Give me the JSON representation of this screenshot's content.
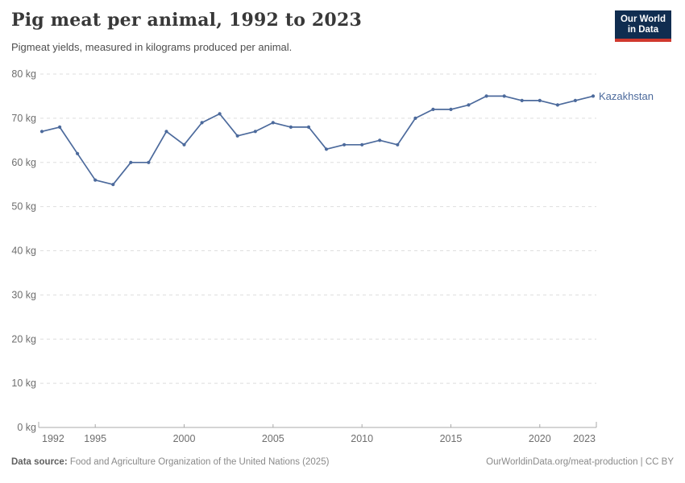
{
  "header": {
    "title": "Pig meat per animal, 1992 to 2023",
    "subtitle": "Pigmeat yields, measured in kilograms produced per animal.",
    "logo": {
      "line1": "Our World",
      "line2": "in Data"
    }
  },
  "chart_data": {
    "type": "line",
    "title": "Pig meat per animal, 1992 to 2023",
    "unit": "kg",
    "x": [
      1992,
      1993,
      1994,
      1995,
      1996,
      1997,
      1998,
      1999,
      2000,
      2001,
      2002,
      2003,
      2004,
      2005,
      2006,
      2007,
      2008,
      2009,
      2010,
      2011,
      2012,
      2013,
      2014,
      2015,
      2016,
      2017,
      2018,
      2019,
      2020,
      2021,
      2022,
      2023
    ],
    "series": [
      {
        "name": "Kazakhstan",
        "color": "#4C6A9C",
        "values": [
          67,
          68,
          62,
          56,
          55,
          60,
          60,
          67,
          64,
          69,
          71,
          66,
          67,
          69,
          68,
          68,
          63,
          64,
          64,
          65,
          64,
          70,
          72,
          72,
          73,
          75,
          75,
          74,
          74,
          73,
          74,
          75
        ]
      }
    ],
    "ylim": [
      0,
      80
    ],
    "y_tick_step": 10,
    "x_ticks": [
      1992,
      1995,
      2000,
      2005,
      2010,
      2015,
      2020,
      2023
    ],
    "grid": true,
    "legend_position": "end-of-line",
    "xlabel": "",
    "ylabel": ""
  },
  "footer": {
    "source_label": "Data source:",
    "source_text": "Food and Agriculture Organization of the United Nations (2025)",
    "credit": "OurWorldinData.org/meat-production | CC BY"
  },
  "colors": {
    "accent_line": "#4C6A9C",
    "logo_navy": "#102D50",
    "logo_red": "#D0382E",
    "grid": "#dedede",
    "axis": "#a8a8a8",
    "tick_text": "#6e6e6e"
  }
}
